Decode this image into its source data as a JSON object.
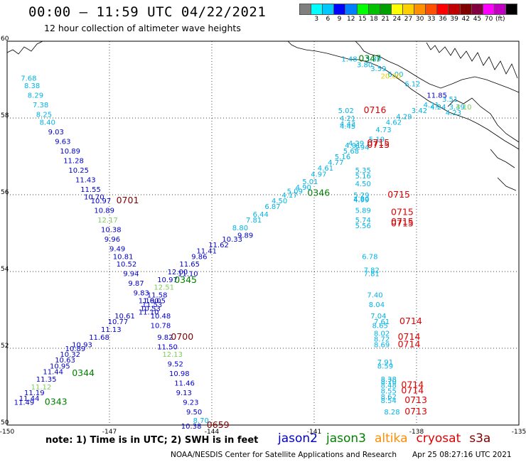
{
  "title": "00:00 – 11:59 UTC 04/22/2021",
  "subtitle": "12 hour collection of altimeter wave heights",
  "colorbar": {
    "colors": [
      "#7f7f7f",
      "#00ffff",
      "#00c8ff",
      "#0000ff",
      "#0080ff",
      "#00ff00",
      "#00c000",
      "#00a000",
      "#ffff00",
      "#ffd000",
      "#ff9000",
      "#ff5000",
      "#ff0000",
      "#c00000",
      "#800000",
      "#800040",
      "#ff00ff",
      "#c000c0",
      "#000000"
    ],
    "labels": [
      "3",
      "6",
      "9",
      "12",
      "15",
      "18",
      "21",
      "24",
      "27",
      "30",
      "33",
      "36",
      "39",
      "42",
      "45",
      "70",
      "(ft)"
    ]
  },
  "axes": {
    "lat_ticks": [
      "60",
      "58",
      "56",
      "54",
      "52",
      "50"
    ],
    "lon_ticks": [
      "-150",
      "-147",
      "-144",
      "-141",
      "-138",
      "-135"
    ],
    "lon_range": [
      -150,
      -135
    ],
    "lat_range": [
      50,
      60
    ],
    "grid": "dotted"
  },
  "sat_colors": {
    "jason2": "#0000cd",
    "jason3": "#008000",
    "altika": "#ff8c00",
    "cryosat": "#e00000",
    "s3a": "#800000",
    "cyan": "#00b4e6",
    "light": "#7ccd5a",
    "yellow": "#e8d000"
  },
  "track_labels": [
    {
      "text": "0701",
      "lon": -146.8,
      "lat": 55.85,
      "sat": "s3a"
    },
    {
      "text": "0700",
      "lon": -145.2,
      "lat": 52.3,
      "sat": "s3a"
    },
    {
      "text": "0659",
      "lon": -144.15,
      "lat": 50.0,
      "sat": "s3a"
    },
    {
      "text": "0345",
      "lon": -145.1,
      "lat": 53.78,
      "sat": "jason3"
    },
    {
      "text": "0344",
      "lon": -148.1,
      "lat": 51.35,
      "sat": "jason3"
    },
    {
      "text": "0343",
      "lon": -148.9,
      "lat": 50.6,
      "sat": "jason3"
    },
    {
      "text": "0346",
      "lon": -141.2,
      "lat": 56.05,
      "sat": "jason3"
    },
    {
      "text": "0347",
      "lon": -139.7,
      "lat": 59.55,
      "sat": "jason3"
    },
    {
      "text": "0716",
      "lon": -139.55,
      "lat": 58.2,
      "sat": "cryosat"
    },
    {
      "text": "0715",
      "lon": -139.45,
      "lat": 57.35,
      "sat": "cryosat"
    },
    {
      "text": "0715",
      "lon": -139.45,
      "lat": 57.3,
      "sat": "cryosat"
    },
    {
      "text": "0715",
      "lon": -138.85,
      "lat": 56.0,
      "sat": "cryosat"
    },
    {
      "text": "0715",
      "lon": -138.75,
      "lat": 55.55,
      "sat": "cryosat"
    },
    {
      "text": "0715",
      "lon": -138.75,
      "lat": 55.3,
      "sat": "cryosat"
    },
    {
      "text": "0715",
      "lon": -138.75,
      "lat": 55.25,
      "sat": "cryosat"
    },
    {
      "text": "0714",
      "lon": -138.5,
      "lat": 52.7,
      "sat": "cryosat"
    },
    {
      "text": "0714",
      "lon": -138.55,
      "lat": 52.3,
      "sat": "cryosat"
    },
    {
      "text": "0714",
      "lon": -138.55,
      "lat": 52.1,
      "sat": "cryosat"
    },
    {
      "text": "0714",
      "lon": -138.45,
      "lat": 51.05,
      "sat": "cryosat"
    },
    {
      "text": "0714",
      "lon": -138.45,
      "lat": 50.9,
      "sat": "cryosat"
    },
    {
      "text": "0713",
      "lon": -138.35,
      "lat": 50.65,
      "sat": "cryosat"
    },
    {
      "text": "0713",
      "lon": -138.35,
      "lat": 50.35,
      "sat": "cryosat"
    }
  ],
  "swh_labels": [
    {
      "text": "7.68",
      "lon": -149.6,
      "lat": 59.05,
      "sat": "cyan"
    },
    {
      "text": "8.38",
      "lon": -149.5,
      "lat": 58.85,
      "sat": "cyan"
    },
    {
      "text": "8.29",
      "lon": -149.4,
      "lat": 58.6,
      "sat": "cyan"
    },
    {
      "text": "7.38",
      "lon": -149.25,
      "lat": 58.35,
      "sat": "cyan"
    },
    {
      "text": "8.25",
      "lon": -149.15,
      "lat": 58.1,
      "sat": "cyan"
    },
    {
      "text": "8.40",
      "lon": -149.05,
      "lat": 57.9,
      "sat": "cyan"
    },
    {
      "text": "9.03",
      "lon": -148.8,
      "lat": 57.65,
      "sat": "jason2"
    },
    {
      "text": "9.63",
      "lon": -148.6,
      "lat": 57.4,
      "sat": "jason2"
    },
    {
      "text": "10.89",
      "lon": -148.45,
      "lat": 57.15,
      "sat": "jason2"
    },
    {
      "text": "11.28",
      "lon": -148.35,
      "lat": 56.9,
      "sat": "jason2"
    },
    {
      "text": "10.25",
      "lon": -148.2,
      "lat": 56.65,
      "sat": "jason2"
    },
    {
      "text": "11.43",
      "lon": -148.0,
      "lat": 56.4,
      "sat": "jason2"
    },
    {
      "text": "11.55",
      "lon": -147.85,
      "lat": 56.15,
      "sat": "jason2"
    },
    {
      "text": "10.70",
      "lon": -147.75,
      "lat": 55.95,
      "sat": "jason2"
    },
    {
      "text": "10.97",
      "lon": -147.55,
      "lat": 55.85,
      "sat": "jason2"
    },
    {
      "text": "10.89",
      "lon": -147.45,
      "lat": 55.6,
      "sat": "jason2"
    },
    {
      "text": "12.17",
      "lon": -147.35,
      "lat": 55.35,
      "sat": "light"
    },
    {
      "text": "10.38",
      "lon": -147.25,
      "lat": 55.1,
      "sat": "jason2"
    },
    {
      "text": "9.96",
      "lon": -147.15,
      "lat": 54.85,
      "sat": "jason2"
    },
    {
      "text": "9.49",
      "lon": -147.0,
      "lat": 54.6,
      "sat": "jason2"
    },
    {
      "text": "10.81",
      "lon": -146.9,
      "lat": 54.4,
      "sat": "jason2"
    },
    {
      "text": "10.52",
      "lon": -146.8,
      "lat": 54.2,
      "sat": "jason2"
    },
    {
      "text": "9.94",
      "lon": -146.6,
      "lat": 53.95,
      "sat": "jason2"
    },
    {
      "text": "9.87",
      "lon": -146.45,
      "lat": 53.7,
      "sat": "jason2"
    },
    {
      "text": "9.83",
      "lon": -146.3,
      "lat": 53.45,
      "sat": "jason2"
    },
    {
      "text": "11.58",
      "lon": -145.9,
      "lat": 53.4,
      "sat": "jason2"
    },
    {
      "text": "11.80",
      "lon": -146.15,
      "lat": 53.25,
      "sat": "jason2"
    },
    {
      "text": "10.05",
      "lon": -145.95,
      "lat": 53.25,
      "sat": "jason2"
    },
    {
      "text": "11.53",
      "lon": -146.05,
      "lat": 53.15,
      "sat": "jason2"
    },
    {
      "text": "10.53",
      "lon": -146.1,
      "lat": 53.05,
      "sat": "jason2"
    },
    {
      "text": "11.10",
      "lon": -146.15,
      "lat": 52.95,
      "sat": "jason2"
    },
    {
      "text": "10.48",
      "lon": -145.8,
      "lat": 52.85,
      "sat": "jason2"
    },
    {
      "text": "10.78",
      "lon": -145.8,
      "lat": 52.6,
      "sat": "jason2"
    },
    {
      "text": "9.82",
      "lon": -145.6,
      "lat": 52.3,
      "sat": "jason2"
    },
    {
      "text": "11.50",
      "lon": -145.6,
      "lat": 52.05,
      "sat": "jason2"
    },
    {
      "text": "12.13",
      "lon": -145.45,
      "lat": 51.85,
      "sat": "light"
    },
    {
      "text": "9.52",
      "lon": -145.3,
      "lat": 51.6,
      "sat": "jason2"
    },
    {
      "text": "10.98",
      "lon": -145.25,
      "lat": 51.35,
      "sat": "jason2"
    },
    {
      "text": "11.46",
      "lon": -145.1,
      "lat": 51.1,
      "sat": "jason2"
    },
    {
      "text": "9.13",
      "lon": -145.05,
      "lat": 50.85,
      "sat": "jason2"
    },
    {
      "text": "9.23",
      "lon": -144.85,
      "lat": 50.6,
      "sat": "jason2"
    },
    {
      "text": "9.50",
      "lon": -144.75,
      "lat": 50.35,
      "sat": "jason2"
    },
    {
      "text": "8.70",
      "lon": -144.55,
      "lat": 50.13,
      "sat": "cyan"
    },
    {
      "text": "10.38",
      "lon": -144.9,
      "lat": 49.98,
      "sat": "jason2"
    },
    {
      "text": "11.49",
      "lon": -149.8,
      "lat": 50.6,
      "sat": "jason2"
    },
    {
      "text": "11.44",
      "lon": -149.65,
      "lat": 50.7,
      "sat": "jason2"
    },
    {
      "text": "11.19",
      "lon": -149.5,
      "lat": 50.85,
      "sat": "jason2"
    },
    {
      "text": "11.12",
      "lon": -149.3,
      "lat": 51.0,
      "sat": "light"
    },
    {
      "text": "11.35",
      "lon": -149.15,
      "lat": 51.2,
      "sat": "jason2"
    },
    {
      "text": "11.44",
      "lon": -148.95,
      "lat": 51.4,
      "sat": "jason2"
    },
    {
      "text": "10.95",
      "lon": -148.75,
      "lat": 51.55,
      "sat": "jason2"
    },
    {
      "text": "10.63",
      "lon": -148.6,
      "lat": 51.7,
      "sat": "jason2"
    },
    {
      "text": "10.32",
      "lon": -148.45,
      "lat": 51.85,
      "sat": "jason2"
    },
    {
      "text": "10.89",
      "lon": -148.3,
      "lat": 52.0,
      "sat": "jason2"
    },
    {
      "text": "10.93",
      "lon": -148.1,
      "lat": 52.1,
      "sat": "jason2"
    },
    {
      "text": "11.68",
      "lon": -147.6,
      "lat": 52.3,
      "sat": "jason2"
    },
    {
      "text": "11.13",
      "lon": -147.25,
      "lat": 52.5,
      "sat": "jason2"
    },
    {
      "text": "10.77",
      "lon": -147.05,
      "lat": 52.7,
      "sat": "jason2"
    },
    {
      "text": "10.61",
      "lon": -146.85,
      "lat": 52.85,
      "sat": "jason2"
    },
    {
      "text": "12.51",
      "lon": -145.7,
      "lat": 53.6,
      "sat": "light"
    },
    {
      "text": "10.97",
      "lon": -145.6,
      "lat": 53.8,
      "sat": "jason2"
    },
    {
      "text": "11.10",
      "lon": -145.0,
      "lat": 53.95,
      "sat": "jason2"
    },
    {
      "text": "12.00",
      "lon": -145.3,
      "lat": 54.0,
      "sat": "jason2"
    },
    {
      "text": "11.65",
      "lon": -144.95,
      "lat": 54.2,
      "sat": "jason2"
    },
    {
      "text": "9.86",
      "lon": -144.6,
      "lat": 54.4,
      "sat": "jason2"
    },
    {
      "text": "11.41",
      "lon": -144.45,
      "lat": 54.55,
      "sat": "jason2"
    },
    {
      "text": "11.62",
      "lon": -144.1,
      "lat": 54.7,
      "sat": "jason2"
    },
    {
      "text": "10.33",
      "lon": -143.7,
      "lat": 54.85,
      "sat": "jason2"
    },
    {
      "text": "9.89",
      "lon": -143.25,
      "lat": 54.95,
      "sat": "jason2"
    },
    {
      "text": "8.80",
      "lon": -143.4,
      "lat": 55.15,
      "sat": "cyan"
    },
    {
      "text": "7.81",
      "lon": -143.0,
      "lat": 55.35,
      "sat": "cyan"
    },
    {
      "text": "6.44",
      "lon": -142.8,
      "lat": 55.5,
      "sat": "cyan"
    },
    {
      "text": "6.87",
      "lon": -142.45,
      "lat": 55.7,
      "sat": "cyan"
    },
    {
      "text": "4.50",
      "lon": -142.25,
      "lat": 55.85,
      "sat": "cyan"
    },
    {
      "text": "4.17",
      "lon": -141.95,
      "lat": 56.0,
      "sat": "cyan"
    },
    {
      "text": "5.09",
      "lon": -141.8,
      "lat": 56.1,
      "sat": "cyan"
    },
    {
      "text": "4.90",
      "lon": -141.55,
      "lat": 56.2,
      "sat": "cyan"
    },
    {
      "text": "5.01",
      "lon": -141.35,
      "lat": 56.35,
      "sat": "cyan"
    },
    {
      "text": "4.97",
      "lon": -141.1,
      "lat": 56.55,
      "sat": "cyan"
    },
    {
      "text": "4.61",
      "lon": -140.9,
      "lat": 56.7,
      "sat": "cyan"
    },
    {
      "text": "4.77",
      "lon": -140.6,
      "lat": 56.85,
      "sat": "cyan"
    },
    {
      "text": "5.16",
      "lon": -140.4,
      "lat": 57.0,
      "sat": "cyan"
    },
    {
      "text": "5.68",
      "lon": -140.15,
      "lat": 57.15,
      "sat": "cyan"
    },
    {
      "text": "5.19",
      "lon": -139.4,
      "lat": 57.45,
      "sat": "cyan"
    },
    {
      "text": "4.73",
      "lon": -139.2,
      "lat": 57.7,
      "sat": "cyan"
    },
    {
      "text": "4.62",
      "lon": -138.9,
      "lat": 57.9,
      "sat": "cyan"
    },
    {
      "text": "4.29",
      "lon": -138.6,
      "lat": 58.05,
      "sat": "cyan"
    },
    {
      "text": "3.42",
      "lon": -138.15,
      "lat": 58.2,
      "sat": "cyan"
    },
    {
      "text": "4.21",
      "lon": -137.8,
      "lat": 58.35,
      "sat": "cyan"
    },
    {
      "text": "4.24",
      "lon": -137.6,
      "lat": 58.3,
      "sat": "cyan"
    },
    {
      "text": "3.51",
      "lon": -137.25,
      "lat": 58.5,
      "sat": "cyan"
    },
    {
      "text": "3.39",
      "lon": -137.05,
      "lat": 58.3,
      "sat": "cyan"
    },
    {
      "text": "4.23",
      "lon": -137.15,
      "lat": 58.15,
      "sat": "cyan"
    },
    {
      "text": "4.10",
      "lon": -136.85,
      "lat": 58.3,
      "sat": "light"
    },
    {
      "text": "11.85",
      "lon": -137.7,
      "lat": 58.6,
      "sat": "jason2"
    },
    {
      "text": "6.12",
      "lon": -138.35,
      "lat": 58.9,
      "sat": "cyan"
    },
    {
      "text": "6.00",
      "lon": -138.85,
      "lat": 59.15,
      "sat": "cyan"
    },
    {
      "text": "20.00",
      "lon": -139.05,
      "lat": 59.1,
      "sat": "yellow"
    },
    {
      "text": "3.59",
      "lon": -139.35,
      "lat": 59.3,
      "sat": "cyan"
    },
    {
      "text": "3.80",
      "lon": -139.75,
      "lat": 59.4,
      "sat": "cyan"
    },
    {
      "text": "1.48",
      "lon": -140.2,
      "lat": 59.55,
      "sat": "cyan"
    },
    {
      "text": "3.89",
      "lon": -139.5,
      "lat": 59.55,
      "sat": "cyan"
    },
    {
      "text": "5.02",
      "lon": -140.3,
      "lat": 58.2,
      "sat": "cyan"
    },
    {
      "text": "4.21",
      "lon": -140.25,
      "lat": 58.0,
      "sat": "cyan"
    },
    {
      "text": "4.43",
      "lon": -140.25,
      "lat": 57.85,
      "sat": "cyan"
    },
    {
      "text": "4.45",
      "lon": -140.25,
      "lat": 57.8,
      "sat": "cyan"
    },
    {
      "text": "4.29",
      "lon": -140.0,
      "lat": 57.35,
      "sat": "cyan"
    },
    {
      "text": "4.01",
      "lon": -140.1,
      "lat": 57.3,
      "sat": "cyan"
    },
    {
      "text": "3.94",
      "lon": -139.85,
      "lat": 57.25,
      "sat": "cyan"
    },
    {
      "text": "5.35",
      "lon": -139.8,
      "lat": 56.65,
      "sat": "cyan"
    },
    {
      "text": "5.16",
      "lon": -139.8,
      "lat": 56.5,
      "sat": "cyan"
    },
    {
      "text": "4.50",
      "lon": -139.8,
      "lat": 56.3,
      "sat": "cyan"
    },
    {
      "text": "5.29",
      "lon": -139.85,
      "lat": 56.0,
      "sat": "cyan"
    },
    {
      "text": "4.80",
      "lon": -139.85,
      "lat": 55.9,
      "sat": "cyan"
    },
    {
      "text": "4.99",
      "lon": -139.85,
      "lat": 55.88,
      "sat": "cyan"
    },
    {
      "text": "5.89",
      "lon": -139.8,
      "lat": 55.6,
      "sat": "cyan"
    },
    {
      "text": "5.74",
      "lon": -139.8,
      "lat": 55.35,
      "sat": "cyan"
    },
    {
      "text": "5.56",
      "lon": -139.8,
      "lat": 55.2,
      "sat": "cyan"
    },
    {
      "text": "6.78",
      "lon": -139.6,
      "lat": 54.4,
      "sat": "cyan"
    },
    {
      "text": "7.82",
      "lon": -139.55,
      "lat": 54.05,
      "sat": "cyan"
    },
    {
      "text": "7.81",
      "lon": -139.55,
      "lat": 53.95,
      "sat": "cyan"
    },
    {
      "text": "7.40",
      "lon": -139.45,
      "lat": 53.4,
      "sat": "cyan"
    },
    {
      "text": "8.04",
      "lon": -139.4,
      "lat": 53.15,
      "sat": "cyan"
    },
    {
      "text": "7.04",
      "lon": -139.35,
      "lat": 52.85,
      "sat": "cyan"
    },
    {
      "text": "7.61",
      "lon": -139.25,
      "lat": 52.7,
      "sat": "cyan"
    },
    {
      "text": "8.65",
      "lon": -139.3,
      "lat": 52.6,
      "sat": "cyan"
    },
    {
      "text": "8.02",
      "lon": -139.25,
      "lat": 52.4,
      "sat": "cyan"
    },
    {
      "text": "8.72",
      "lon": -139.25,
      "lat": 52.25,
      "sat": "cyan"
    },
    {
      "text": "8.69",
      "lon": -139.25,
      "lat": 52.1,
      "sat": "cyan"
    },
    {
      "text": "7.91",
      "lon": -139.15,
      "lat": 51.65,
      "sat": "cyan"
    },
    {
      "text": "8.59",
      "lon": -139.15,
      "lat": 51.55,
      "sat": "cyan"
    },
    {
      "text": "8.38",
      "lon": -139.05,
      "lat": 51.2,
      "sat": "cyan"
    },
    {
      "text": "8.70",
      "lon": -139.05,
      "lat": 51.15,
      "sat": "cyan"
    },
    {
      "text": "8.48",
      "lon": -139.05,
      "lat": 51.05,
      "sat": "cyan"
    },
    {
      "text": "8.55",
      "lon": -139.05,
      "lat": 50.9,
      "sat": "cyan"
    },
    {
      "text": "8.62",
      "lon": -139.05,
      "lat": 50.75,
      "sat": "cyan"
    },
    {
      "text": "8.54",
      "lon": -139.05,
      "lat": 50.65,
      "sat": "cyan"
    },
    {
      "text": "8.28",
      "lon": -138.95,
      "lat": 50.35,
      "sat": "cyan"
    }
  ],
  "footer": {
    "note": "note: 1) Time is in UTC; 2) SWH is in feet",
    "sat_legend": [
      {
        "label": "jason2",
        "color": "#0000cd"
      },
      {
        "label": "jason3",
        "color": "#008000"
      },
      {
        "label": "altika",
        "color": "#ff8c00"
      },
      {
        "label": "cryosat",
        "color": "#e00000"
      },
      {
        "label": "s3a",
        "color": "#800000"
      }
    ],
    "credit": "NOAA/NESDIS Center for Satellite Applications and Research",
    "date": "Apr 25 08:27:16 UTC 2021"
  }
}
